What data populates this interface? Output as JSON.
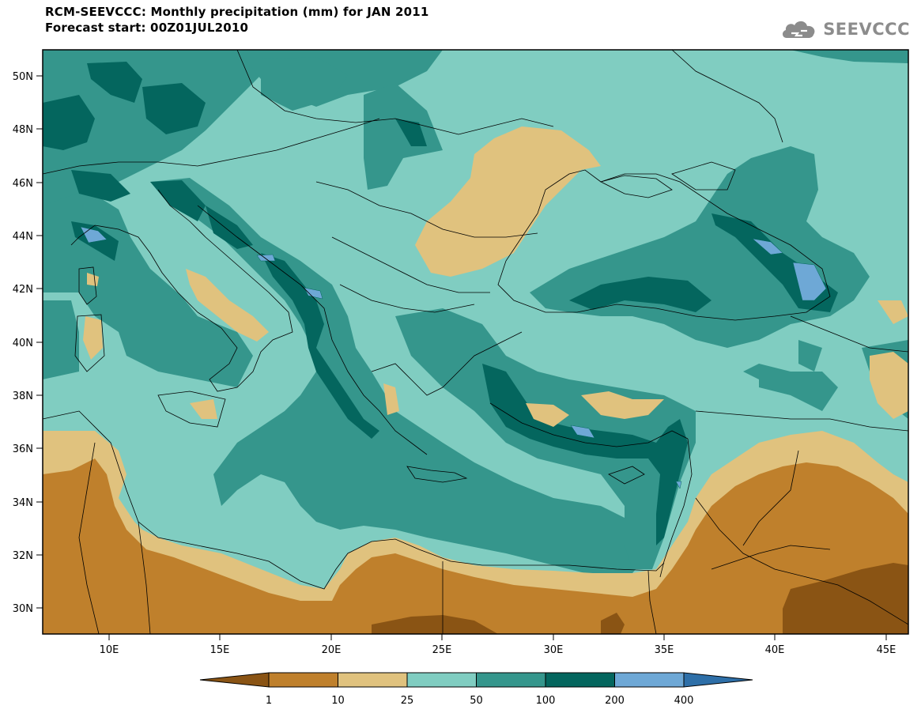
{
  "header": {
    "title": "RCM-SEEVCCC: Monthly precipitation (mm) for JAN 2011",
    "subtitle": "Forecast start: 00Z01JUL2010",
    "logo_text": "SEEVCCC",
    "logo_icon": "cloud-icon"
  },
  "map": {
    "projection": "lat-lon",
    "lon_range": [
      7,
      46
    ],
    "lat_range": [
      29,
      51
    ],
    "lat_ticks": [
      "50N",
      "48N",
      "46N",
      "44N",
      "42N",
      "40N",
      "38N",
      "36N",
      "34N",
      "32N",
      "30N"
    ],
    "lon_ticks": [
      "10E",
      "15E",
      "20E",
      "25E",
      "30E",
      "35E",
      "40E",
      "45E"
    ],
    "variable": "Monthly precipitation (mm)"
  },
  "legend": {
    "labels": [
      "1",
      "10",
      "25",
      "50",
      "100",
      "200",
      "400"
    ],
    "colors": [
      "#8a5414",
      "#bf802c",
      "#e0c27e",
      "#80cdc1",
      "#35968c",
      "#04665e",
      "#6ea8d6",
      "#2e6fa8"
    ]
  }
}
